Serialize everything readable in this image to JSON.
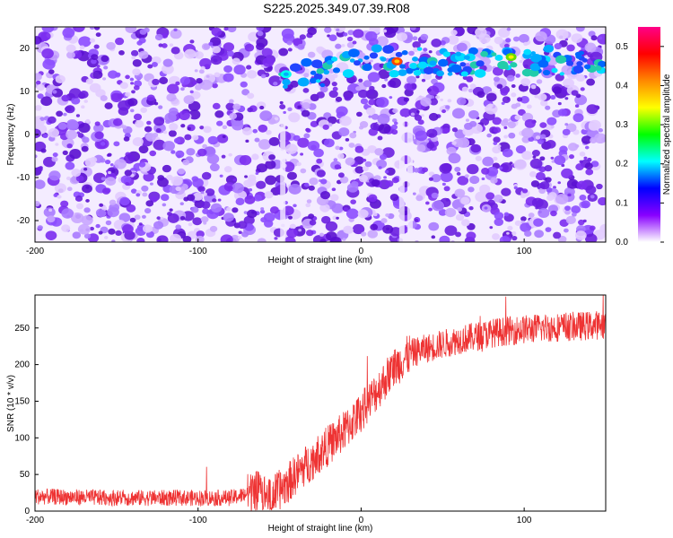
{
  "title": "S225.2025.349.07.39.R08",
  "chart_data": [
    {
      "type": "heatmap",
      "xlabel": "Height of straight line (km)",
      "ylabel": "Frequency (Hz)",
      "xlim": [
        -200,
        150
      ],
      "ylim": [
        -25,
        25
      ],
      "x_ticks": [
        -200,
        -100,
        0,
        100
      ],
      "y_ticks": [
        -20,
        -10,
        0,
        10,
        20
      ],
      "colorbar": {
        "label": "Normalized spectral amplitude",
        "range": [
          0,
          0.55
        ],
        "ticks": [
          0.0,
          0.1,
          0.2,
          0.3,
          0.4,
          0.5
        ],
        "colors": [
          "#ffffff",
          "#8800ff",
          "#0000ff",
          "#00ffff",
          "#00ff00",
          "#ffff00",
          "#ff8800",
          "#ff0000",
          "#ff0088"
        ]
      },
      "features": [
        {
          "description": "signal ridge",
          "x_range": [
            -50,
            150
          ],
          "frequency": 17,
          "peak_amplitude": 0.5
        }
      ]
    },
    {
      "type": "line",
      "xlabel": "Height of straight line (km)",
      "ylabel": "SNR (10 * v/v)",
      "xlim": [
        -200,
        150
      ],
      "ylim": [
        0,
        295
      ],
      "x_ticks": [
        -200,
        -100,
        0,
        100
      ],
      "y_ticks": [
        0,
        50,
        100,
        150,
        200,
        250
      ],
      "color": "#ee3333",
      "x": [
        -200,
        -175,
        -150,
        -125,
        -100,
        -80,
        -72,
        -65,
        -55,
        -45,
        -40,
        -35,
        -30,
        -20,
        -10,
        0,
        10,
        20,
        25,
        30,
        40,
        50,
        60,
        70,
        80,
        90,
        100,
        110,
        120,
        130,
        140,
        150
      ],
      "y": [
        20,
        19,
        18,
        18,
        18,
        18,
        22,
        28,
        20,
        38,
        50,
        60,
        70,
        90,
        110,
        135,
        165,
        195,
        205,
        215,
        222,
        228,
        234,
        238,
        243,
        246,
        248,
        250,
        251,
        252,
        253,
        255
      ]
    }
  ]
}
